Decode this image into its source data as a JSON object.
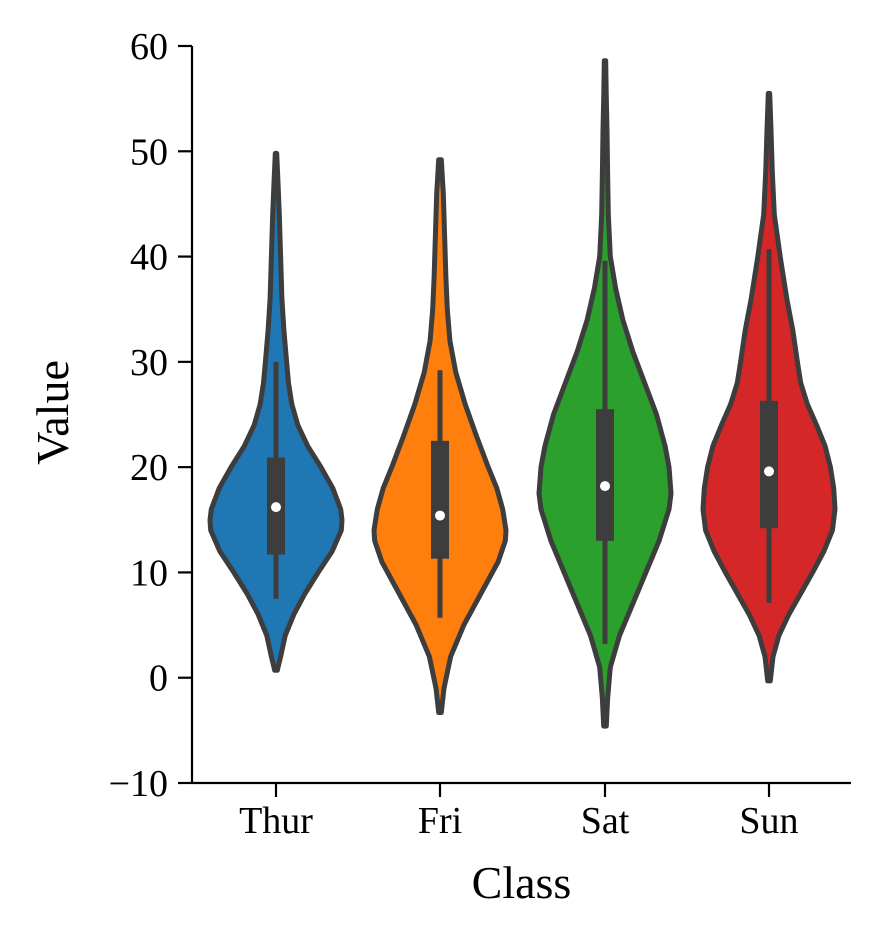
{
  "chart_data": {
    "type": "violin",
    "xlabel": "Class",
    "ylabel": "Value",
    "ylim": [
      -10,
      60
    ],
    "yticks": [
      -10,
      0,
      10,
      20,
      30,
      40,
      50,
      60
    ],
    "ytick_labels": [
      "−10",
      "0",
      "10",
      "20",
      "30",
      "40",
      "50",
      "60"
    ],
    "categories": [
      "Thur",
      "Fri",
      "Sat",
      "Sun"
    ],
    "colors": [
      "#1f77b4",
      "#ff7f0e",
      "#2ca02c",
      "#d62728"
    ],
    "outline_color": "#3d3d3d",
    "grid": false,
    "violins": [
      {
        "category": "Thur",
        "min": 0.7,
        "max": 49.8,
        "q1": 11.7,
        "median": 16.2,
        "q3": 20.9,
        "whisker_low": 7.5,
        "whisker_high": 30.0,
        "density": [
          [
            0.7,
            0.02
          ],
          [
            2,
            0.07
          ],
          [
            4,
            0.14
          ],
          [
            6,
            0.27
          ],
          [
            8,
            0.44
          ],
          [
            10,
            0.64
          ],
          [
            12,
            0.85
          ],
          [
            14,
            0.99
          ],
          [
            15,
            1.0
          ],
          [
            16,
            0.98
          ],
          [
            18,
            0.86
          ],
          [
            20,
            0.68
          ],
          [
            22,
            0.48
          ],
          [
            24,
            0.33
          ],
          [
            26,
            0.24
          ],
          [
            28,
            0.19
          ],
          [
            30,
            0.16
          ],
          [
            33,
            0.12
          ],
          [
            36,
            0.09
          ],
          [
            40,
            0.07
          ],
          [
            44,
            0.05
          ],
          [
            47,
            0.03
          ],
          [
            49.8,
            0.01
          ]
        ]
      },
      {
        "category": "Fri",
        "min": -3.3,
        "max": 49.2,
        "q1": 11.3,
        "median": 15.4,
        "q3": 22.5,
        "whisker_low": 5.7,
        "whisker_high": 29.2,
        "density": [
          [
            -3.3,
            0.02
          ],
          [
            -1,
            0.06
          ],
          [
            2,
            0.16
          ],
          [
            5,
            0.36
          ],
          [
            8,
            0.62
          ],
          [
            11,
            0.88
          ],
          [
            13,
            0.99
          ],
          [
            14,
            1.0
          ],
          [
            16,
            0.95
          ],
          [
            18,
            0.86
          ],
          [
            20,
            0.73
          ],
          [
            23,
            0.55
          ],
          [
            26,
            0.38
          ],
          [
            29,
            0.24
          ],
          [
            32,
            0.15
          ],
          [
            35,
            0.11
          ],
          [
            38,
            0.09
          ],
          [
            42,
            0.07
          ],
          [
            46,
            0.05
          ],
          [
            49.2,
            0.02
          ]
        ]
      },
      {
        "category": "Sat",
        "min": -4.6,
        "max": 58.6,
        "q1": 13.0,
        "median": 18.2,
        "q3": 25.5,
        "whisker_low": 3.2,
        "whisker_high": 39.6,
        "density": [
          [
            -4.6,
            0.02
          ],
          [
            -2,
            0.04
          ],
          [
            1,
            0.08
          ],
          [
            4,
            0.22
          ],
          [
            7,
            0.42
          ],
          [
            10,
            0.62
          ],
          [
            13,
            0.82
          ],
          [
            16,
            0.97
          ],
          [
            17.5,
            1.0
          ],
          [
            20,
            0.97
          ],
          [
            22,
            0.91
          ],
          [
            25,
            0.78
          ],
          [
            28,
            0.6
          ],
          [
            31,
            0.42
          ],
          [
            34,
            0.27
          ],
          [
            37,
            0.16
          ],
          [
            40,
            0.08
          ],
          [
            44,
            0.05
          ],
          [
            48,
            0.04
          ],
          [
            52,
            0.03
          ],
          [
            55,
            0.02
          ],
          [
            58.6,
            0.01
          ]
        ]
      },
      {
        "category": "Sun",
        "min": -0.3,
        "max": 55.5,
        "q1": 14.2,
        "median": 19.6,
        "q3": 26.3,
        "whisker_low": 7.1,
        "whisker_high": 40.7,
        "density": [
          [
            -0.3,
            0.02
          ],
          [
            2,
            0.06
          ],
          [
            4,
            0.15
          ],
          [
            6,
            0.3
          ],
          [
            8,
            0.48
          ],
          [
            10,
            0.66
          ],
          [
            12,
            0.83
          ],
          [
            14,
            0.96
          ],
          [
            16,
            1.0
          ],
          [
            18,
            0.98
          ],
          [
            20,
            0.93
          ],
          [
            22,
            0.85
          ],
          [
            24,
            0.72
          ],
          [
            26,
            0.58
          ],
          [
            28,
            0.48
          ],
          [
            30,
            0.43
          ],
          [
            33,
            0.36
          ],
          [
            36,
            0.27
          ],
          [
            40,
            0.17
          ],
          [
            44,
            0.08
          ],
          [
            48,
            0.05
          ],
          [
            52,
            0.03
          ],
          [
            55.5,
            0.01
          ]
        ]
      }
    ]
  }
}
